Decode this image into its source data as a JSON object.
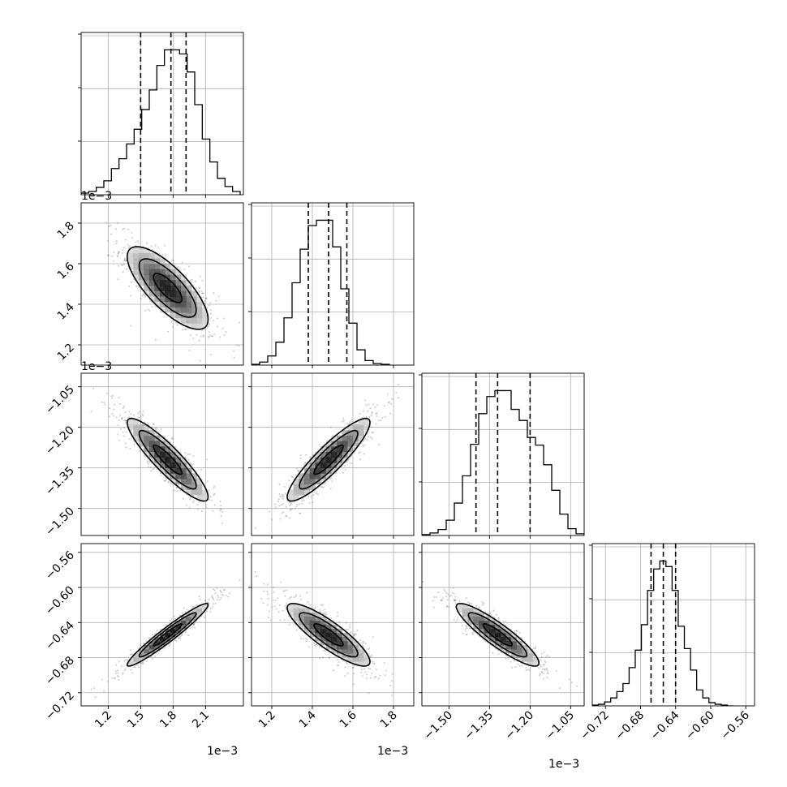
{
  "chart_data": {
    "type": "corner",
    "grid": true,
    "parameters": [
      {
        "index": 0,
        "range": [
          0.00095,
          0.00245
        ],
        "ticks": [
          1.2,
          1.5,
          1.8,
          2.1
        ],
        "tick_labels": [
          "1.2",
          "1.5",
          "1.8",
          "2.1"
        ],
        "scale": "1e−3"
      },
      {
        "index": 1,
        "range": [
          0.0011,
          0.0019
        ],
        "ticks": [
          1.2,
          1.4,
          1.6,
          1.8
        ],
        "tick_labels": [
          "1.2",
          "1.4",
          "1.6",
          "1.8"
        ],
        "scale": "1e−3"
      },
      {
        "index": 2,
        "range": [
          -0.0016,
          -0.001
        ],
        "ticks": [
          -1.5,
          -1.35,
          -1.2,
          -1.05
        ],
        "tick_labels": [
          "−1.50",
          "−1.35",
          "−1.20",
          "−1.05"
        ],
        "scale": "1e−3"
      },
      {
        "index": 3,
        "range": [
          -0.735,
          -0.55
        ],
        "ticks": [
          -0.72,
          -0.68,
          -0.64,
          -0.6,
          -0.56
        ],
        "tick_labels": [
          "−0.72",
          "−0.68",
          "−0.64",
          "−0.60",
          "−0.56"
        ],
        "scale": ""
      }
    ],
    "marginals": [
      {
        "param": 0,
        "quantiles": [
          0.0015,
          0.00178,
          0.00192
        ],
        "bin_edges": [
          0.00095,
          0.00102,
          0.00109,
          0.00116,
          0.00123,
          0.0013,
          0.00137,
          0.00144,
          0.00151,
          0.00158,
          0.00165,
          0.00172,
          0.00179,
          0.00186,
          0.00193,
          0.002,
          0.00207,
          0.00214,
          0.00221,
          0.00228,
          0.00235,
          0.00242
        ],
        "counts": [
          2,
          4,
          9,
          17,
          32,
          44,
          62,
          80,
          104,
          128,
          158,
          177,
          177,
          172,
          150,
          110,
          68,
          40,
          20,
          10,
          4
        ]
      },
      {
        "param": 1,
        "quantiles": [
          0.00138,
          0.00148,
          0.00157
        ],
        "bin_edges": [
          0.0011,
          0.00114,
          0.00118,
          0.00122,
          0.00126,
          0.0013,
          0.00134,
          0.00138,
          0.00142,
          0.00146,
          0.0015,
          0.00154,
          0.00158,
          0.00162,
          0.00166,
          0.0017,
          0.00174,
          0.00178
        ],
        "counts": [
          1,
          4,
          12,
          30,
          62,
          108,
          152,
          183,
          190,
          190,
          155,
          100,
          55,
          20,
          6,
          2,
          1
        ]
      },
      {
        "param": 2,
        "quantiles": [
          -0.0014,
          -0.00132,
          -0.0012
        ],
        "bin_edges": [
          -0.0016,
          -0.00157,
          -0.00154,
          -0.00151,
          -0.00148,
          -0.00145,
          -0.00142,
          -0.00139,
          -0.00136,
          -0.00133,
          -0.0013,
          -0.00127,
          -0.00124,
          -0.00121,
          -0.00118,
          -0.00115,
          -0.00112,
          -0.00109,
          -0.00106,
          -0.00103,
          -0.001
        ],
        "counts": [
          1,
          3,
          7,
          18,
          38,
          70,
          107,
          143,
          163,
          170,
          170,
          148,
          135,
          115,
          106,
          83,
          53,
          25,
          8,
          2
        ]
      },
      {
        "param": 3,
        "quantiles": [
          -0.668,
          -0.654,
          -0.64
        ],
        "bin_edges": [
          -0.735,
          -0.728,
          -0.721,
          -0.714,
          -0.707,
          -0.7,
          -0.693,
          -0.686,
          -0.679,
          -0.672,
          -0.665,
          -0.658,
          -0.651,
          -0.644,
          -0.637,
          -0.63,
          -0.623,
          -0.616,
          -0.609,
          -0.602,
          -0.595,
          -0.588,
          -0.581,
          -0.574
        ],
        "counts": [
          1,
          2,
          5,
          10,
          18,
          28,
          48,
          70,
          102,
          145,
          172,
          182,
          175,
          145,
          100,
          72,
          45,
          20,
          10,
          4,
          2,
          1,
          0
        ]
      }
    ],
    "joint": [
      {
        "x": 0,
        "y": 1,
        "mean": [
          0.00175,
          0.00148
        ],
        "sd": [
          0.00022,
          0.00012
        ],
        "rho": -0.76
      },
      {
        "x": 0,
        "y": 2,
        "mean": [
          0.00175,
          -0.00132
        ],
        "sd": [
          0.00022,
          9e-05
        ],
        "rho": -0.9
      },
      {
        "x": 1,
        "y": 2,
        "mean": [
          0.00148,
          -0.00132
        ],
        "sd": [
          0.00012,
          9e-05
        ],
        "rho": 0.9
      },
      {
        "x": 0,
        "y": 3,
        "mean": [
          0.00175,
          -0.654
        ],
        "sd": [
          0.00022,
          0.021
        ],
        "rho": 0.96
      },
      {
        "x": 1,
        "y": 3,
        "mean": [
          0.00148,
          -0.654
        ],
        "sd": [
          0.00012,
          0.021
        ],
        "rho": -0.86
      },
      {
        "x": 2,
        "y": 3,
        "mean": [
          -0.00132,
          -0.654
        ],
        "sd": [
          9e-05,
          0.021
        ],
        "rho": -0.9
      }
    ]
  }
}
